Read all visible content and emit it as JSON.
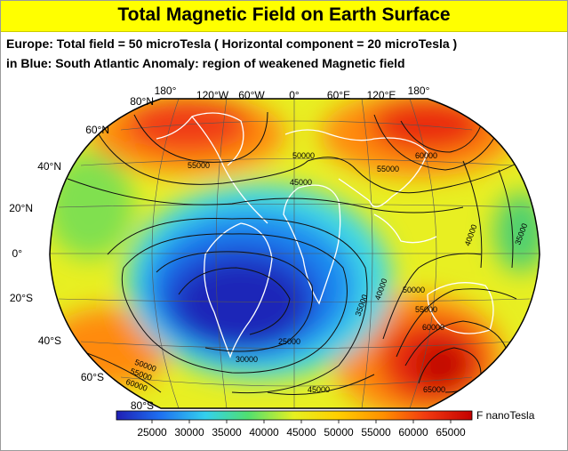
{
  "title": "Total Magnetic Field on Earth Surface",
  "subtitle1": "Europe: Total field = 50 microTesla ( Horizontal component = 20 microTesla )",
  "subtitle2": "in Blue: South Atlantic Anomaly: region of weakened Magnetic field",
  "longitude_labels": [
    "180°",
    "120°W",
    "60°W",
    "0°",
    "60°E",
    "120°E",
    "180°"
  ],
  "latitude_labels": [
    "80°N",
    "60°N",
    "40°N",
    "20°N",
    "0°",
    "20°S",
    "40°S",
    "60°S",
    "80°S"
  ],
  "contour_labels": [
    "55000",
    "50000",
    "45000",
    "55000",
    "60000",
    "40000",
    "35000",
    "50000",
    "55000",
    "60000",
    "40000",
    "35000",
    "25000",
    "30000",
    "50000",
    "55000",
    "60000",
    "45000",
    "65000"
  ],
  "colorbar": {
    "unit_label": "F nanoTesla",
    "ticks": [
      "25000",
      "30000",
      "35000",
      "40000",
      "45000",
      "50000",
      "55000",
      "60000",
      "65000"
    ],
    "colors": [
      "#1f1fb4",
      "#1e6ef0",
      "#33d0ee",
      "#50e070",
      "#e6f020",
      "#ffd000",
      "#ff9000",
      "#f23a10",
      "#c40000"
    ]
  }
}
